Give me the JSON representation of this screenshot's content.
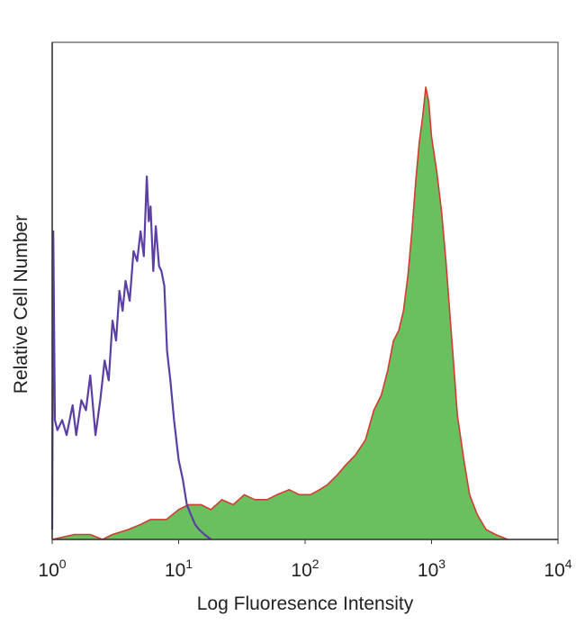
{
  "chart_data": {
    "type": "area",
    "xlabel": "Log Fluoresence Intensity",
    "ylabel": "Relative Cell Number",
    "x_scale": "log",
    "xlim": [
      1,
      10000
    ],
    "ylim": [
      0,
      100
    ],
    "grid": false,
    "x_ticks": [
      {
        "base": "10",
        "exp": "0",
        "value": 1
      },
      {
        "base": "10",
        "exp": "1",
        "value": 10
      },
      {
        "base": "10",
        "exp": "2",
        "value": 100
      },
      {
        "base": "10",
        "exp": "3",
        "value": 1000
      },
      {
        "base": "10",
        "exp": "4",
        "value": 10000
      }
    ],
    "series": [
      {
        "style": "line",
        "color": "#5b3fa3",
        "points": [
          [
            1.0,
            2
          ],
          [
            1.02,
            62
          ],
          [
            1.05,
            24
          ],
          [
            1.1,
            22
          ],
          [
            1.2,
            24
          ],
          [
            1.3,
            21
          ],
          [
            1.45,
            27
          ],
          [
            1.55,
            21
          ],
          [
            1.7,
            28
          ],
          [
            1.85,
            26
          ],
          [
            2.0,
            33
          ],
          [
            2.2,
            21
          ],
          [
            2.4,
            28
          ],
          [
            2.6,
            36
          ],
          [
            2.8,
            32
          ],
          [
            3.0,
            44
          ],
          [
            3.2,
            40
          ],
          [
            3.4,
            50
          ],
          [
            3.6,
            46
          ],
          [
            3.8,
            52
          ],
          [
            4.1,
            48
          ],
          [
            4.4,
            58
          ],
          [
            4.7,
            56
          ],
          [
            5.0,
            62
          ],
          [
            5.3,
            57
          ],
          [
            5.6,
            73
          ],
          [
            5.8,
            64
          ],
          [
            6.0,
            67
          ],
          [
            6.3,
            54
          ],
          [
            6.6,
            63
          ],
          [
            7.0,
            55
          ],
          [
            7.3,
            54
          ],
          [
            7.7,
            51
          ],
          [
            8.1,
            38
          ],
          [
            8.6,
            32
          ],
          [
            9.2,
            24
          ],
          [
            10.0,
            16
          ],
          [
            10.8,
            12
          ],
          [
            11.6,
            7
          ],
          [
            12.5,
            5
          ],
          [
            13.5,
            3
          ],
          [
            14.5,
            2
          ],
          [
            16.0,
            1
          ],
          [
            18.0,
            0
          ]
        ]
      },
      {
        "style": "filled",
        "color": "#6abf5f",
        "edge_color": "#d23c32",
        "points": [
          [
            1.0,
            0
          ],
          [
            1.5,
            1
          ],
          [
            2.0,
            1
          ],
          [
            2.5,
            0
          ],
          [
            3.0,
            1
          ],
          [
            4.0,
            2
          ],
          [
            5.0,
            3
          ],
          [
            6.0,
            4
          ],
          [
            8.0,
            4
          ],
          [
            10.0,
            6
          ],
          [
            12.0,
            7
          ],
          [
            15.0,
            7
          ],
          [
            18.0,
            6
          ],
          [
            22.0,
            8
          ],
          [
            27.0,
            7
          ],
          [
            33.0,
            9
          ],
          [
            40.0,
            8
          ],
          [
            50.0,
            8
          ],
          [
            60.0,
            9
          ],
          [
            75.0,
            10
          ],
          [
            90.0,
            9
          ],
          [
            110.0,
            9
          ],
          [
            130.0,
            10
          ],
          [
            150.0,
            11
          ],
          [
            180.0,
            13
          ],
          [
            210.0,
            15
          ],
          [
            250.0,
            17
          ],
          [
            300.0,
            20
          ],
          [
            350.0,
            26
          ],
          [
            400.0,
            29
          ],
          [
            450.0,
            34
          ],
          [
            500.0,
            40
          ],
          [
            550.0,
            42
          ],
          [
            600.0,
            46
          ],
          [
            650.0,
            53
          ],
          [
            700.0,
            62
          ],
          [
            750.0,
            72
          ],
          [
            800.0,
            80
          ],
          [
            850.0,
            85
          ],
          [
            900.0,
            91
          ],
          [
            950.0,
            88
          ],
          [
            1000.0,
            81
          ],
          [
            1100.0,
            74
          ],
          [
            1200.0,
            66
          ],
          [
            1300.0,
            56
          ],
          [
            1400.0,
            45
          ],
          [
            1500.0,
            35
          ],
          [
            1600.0,
            25
          ],
          [
            1800.0,
            16
          ],
          [
            2000.0,
            9
          ],
          [
            2300.0,
            5
          ],
          [
            2700.0,
            2
          ],
          [
            3200.0,
            1
          ],
          [
            4000.0,
            0
          ]
        ]
      }
    ]
  }
}
